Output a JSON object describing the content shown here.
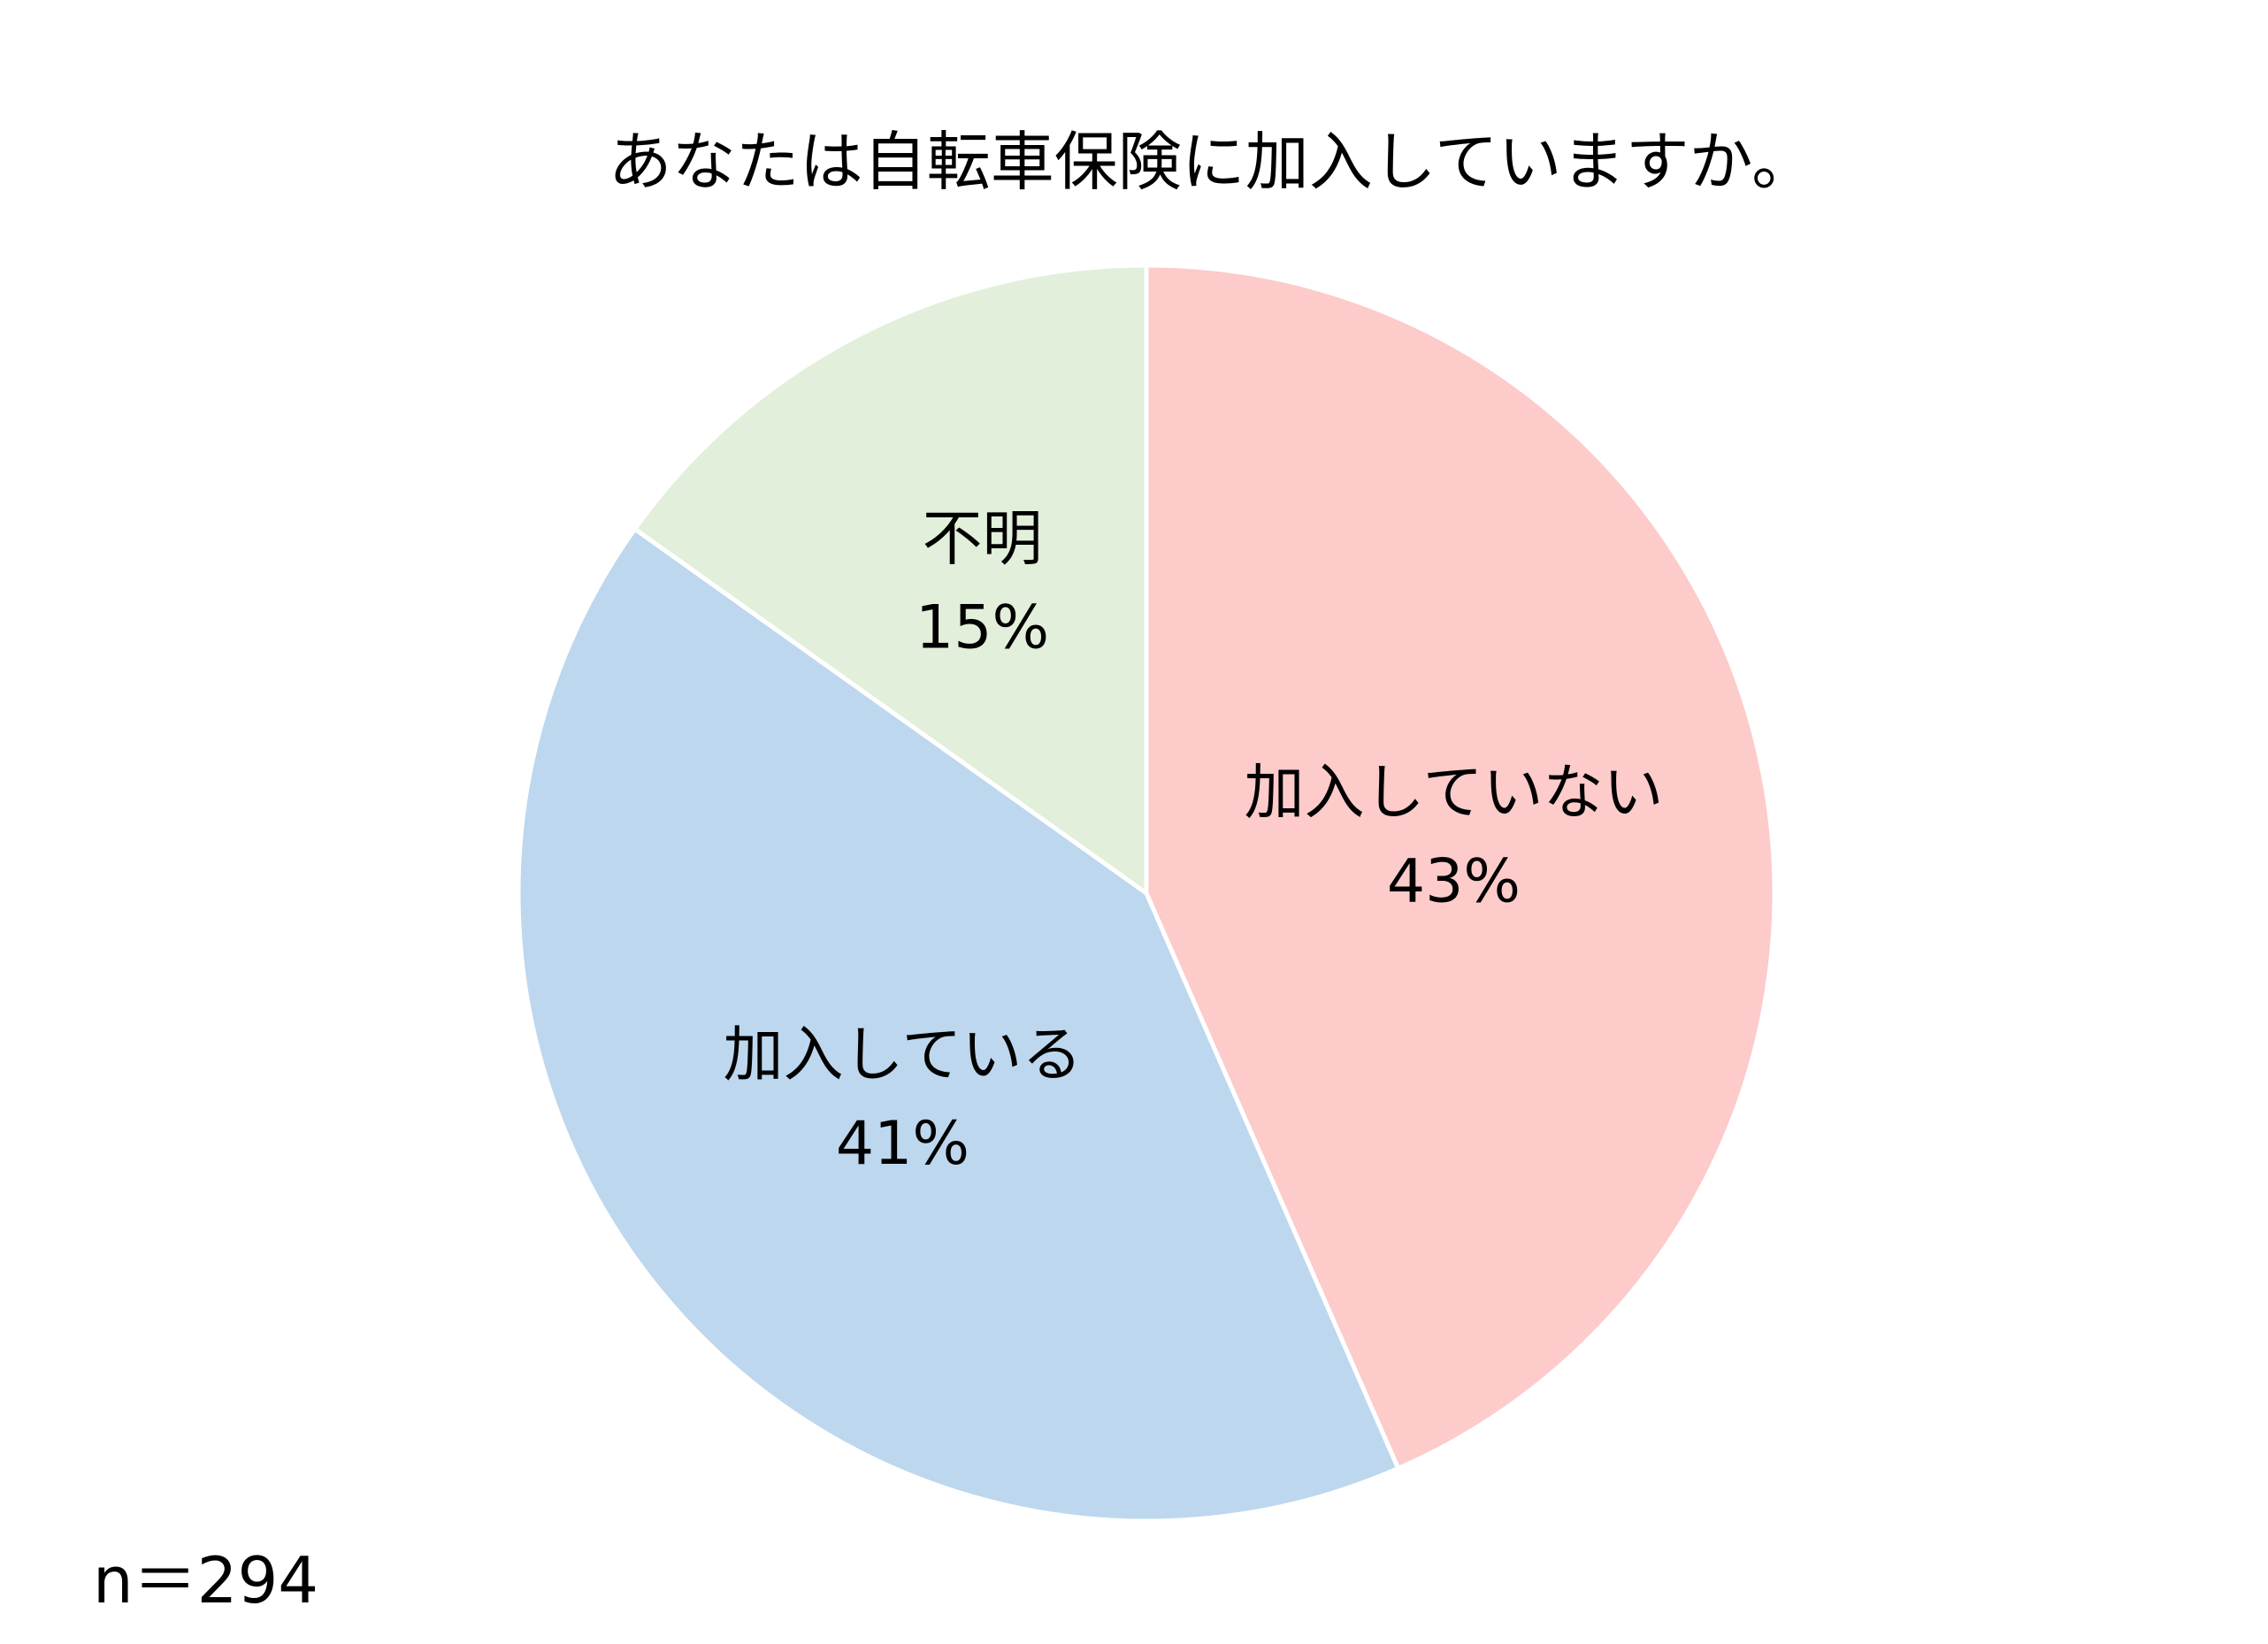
{
  "chart_data": {
    "type": "pie",
    "title": "あなたは自転車保険に加入していますか。",
    "note": "n＝294",
    "start": "12 o'clock",
    "direction": "clockwise",
    "slices": [
      {
        "label": "加入していない",
        "value": 43,
        "value_label": "43%",
        "color": "#fccbca"
      },
      {
        "label": "加入している",
        "value": 41,
        "value_label": "41%",
        "color": "#bdd7ee"
      },
      {
        "label": "不明",
        "value": 15,
        "value_label": "15%",
        "color": "#e2efda"
      }
    ]
  }
}
